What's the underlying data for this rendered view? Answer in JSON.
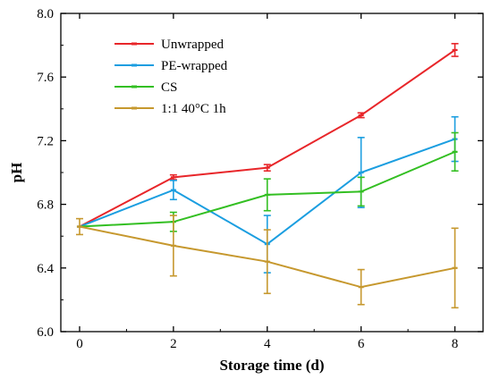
{
  "chart_data": {
    "type": "line",
    "xlabel": "Storage time (d)",
    "ylabel": "pH",
    "xlim": [
      -0.4,
      8.6
    ],
    "ylim": [
      6.0,
      8.0
    ],
    "xticks": [
      "0",
      "2",
      "4",
      "6",
      "8"
    ],
    "yticks": [
      "6.0",
      "6.4",
      "6.8",
      "7.2",
      "7.6",
      "8.0"
    ],
    "grid": false,
    "legend_position": "top-left",
    "x": [
      0,
      2,
      4,
      6,
      8
    ],
    "series": [
      {
        "name": "Unwrapped",
        "color": "#e8262a",
        "values": [
          6.66,
          6.97,
          7.03,
          7.36,
          7.77
        ],
        "errors": [
          0.0,
          0.015,
          0.02,
          0.015,
          0.04
        ]
      },
      {
        "name": "PE-wrapped",
        "color": "#1b9ee0",
        "values": [
          6.66,
          6.89,
          6.55,
          7.0,
          7.21
        ],
        "errors": [
          0.0,
          0.06,
          0.18,
          0.22,
          0.14
        ]
      },
      {
        "name": "CS",
        "color": "#33bf22",
        "values": [
          6.66,
          6.69,
          6.86,
          6.88,
          7.13
        ],
        "errors": [
          0.0,
          0.06,
          0.1,
          0.09,
          0.12
        ]
      },
      {
        "name": "1:1 40°C 1h",
        "color": "#c6982e",
        "values": [
          6.66,
          6.54,
          6.44,
          6.28,
          6.4
        ],
        "errors": [
          0.05,
          0.19,
          0.2,
          0.11,
          0.25
        ]
      }
    ]
  }
}
